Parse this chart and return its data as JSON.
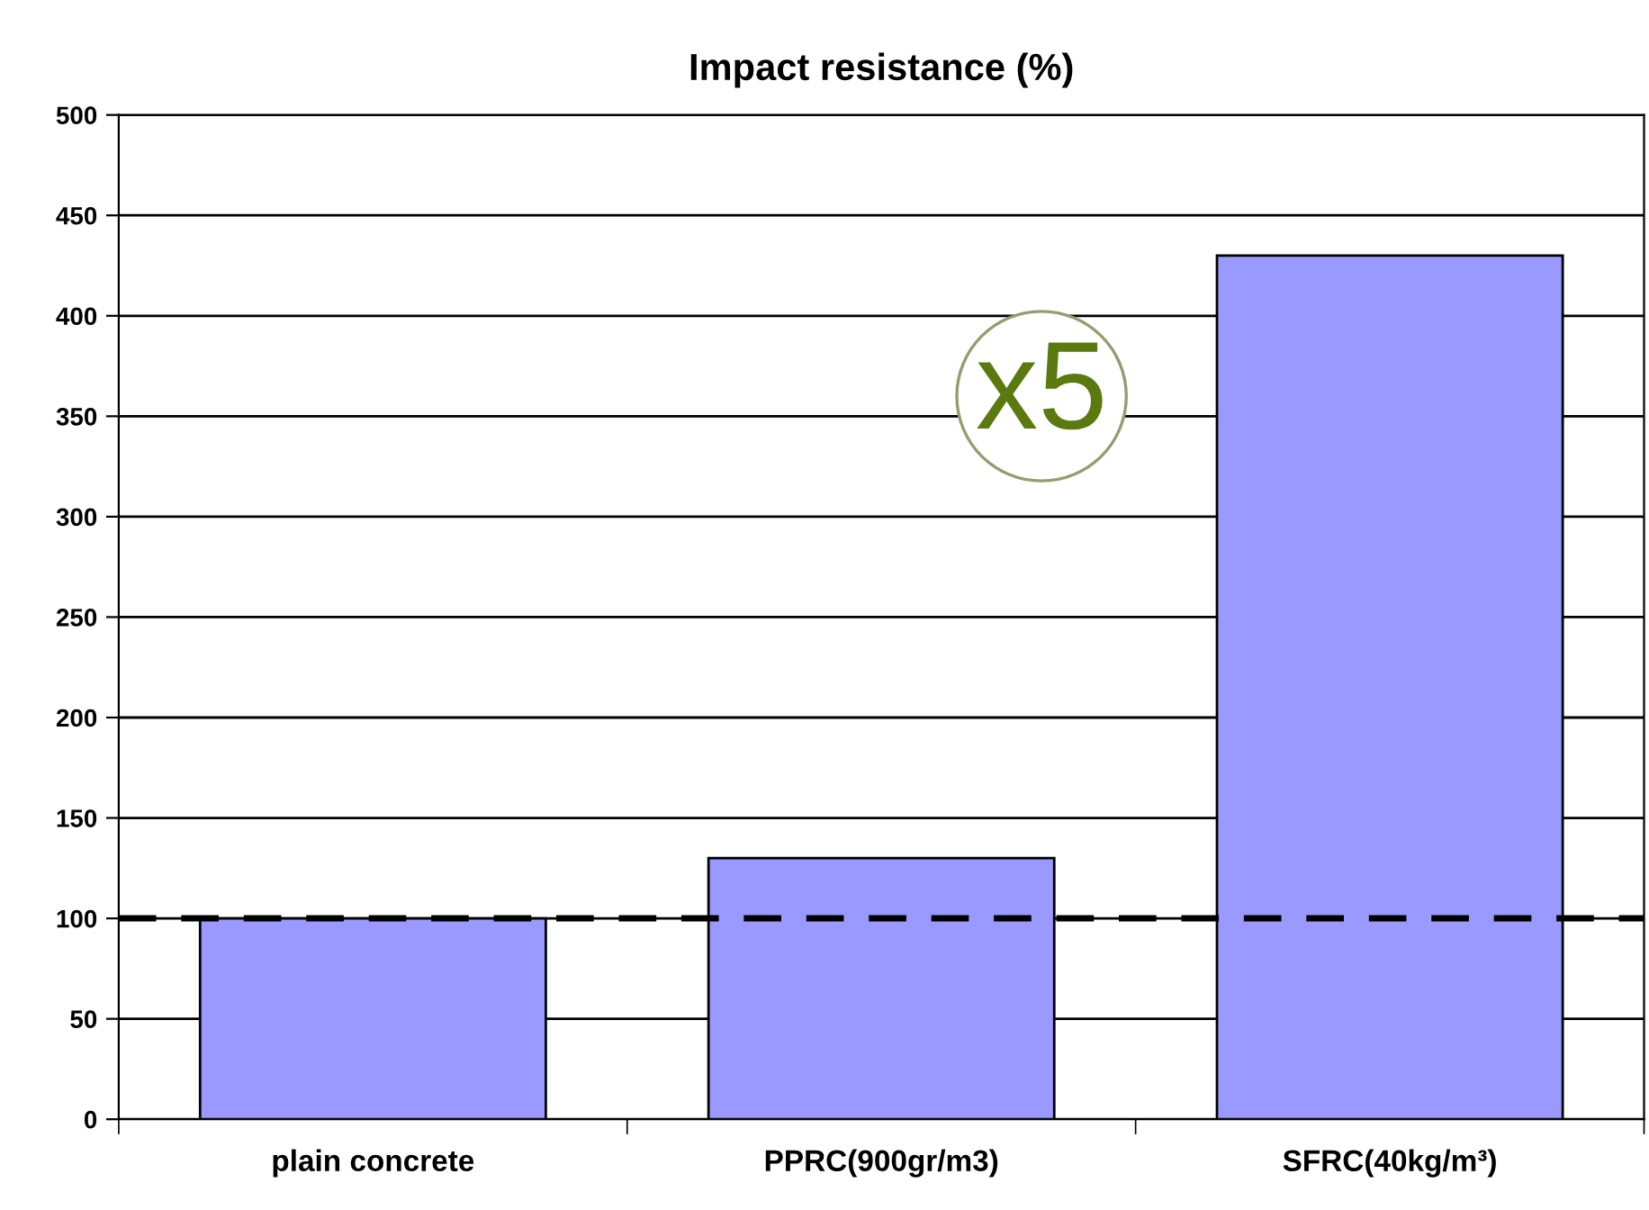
{
  "chart_data": {
    "type": "bar",
    "title": "Impact resistance (%)",
    "categories": [
      "plain concrete",
      "PPRC(900gr/m3)",
      "SFRC(40kg/m³)"
    ],
    "values": [
      100,
      130,
      430
    ],
    "color": "#9999ff",
    "ylim": [
      0,
      500
    ],
    "yticks": [
      0,
      50,
      100,
      150,
      200,
      250,
      300,
      350,
      400,
      450,
      500
    ],
    "grid": "y",
    "ref_lines": [
      {
        "axis": "y",
        "value": 100,
        "color": "#000000",
        "line_style": "dashed"
      }
    ],
    "annotations": [
      "x5"
    ]
  }
}
